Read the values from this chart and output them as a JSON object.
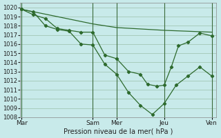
{
  "title": "Pression niveau de la mer( hPa )",
  "bg_color": "#c8eaea",
  "grid_color": "#9bbfaa",
  "line_color": "#2d6a2d",
  "ylim": [
    1008,
    1020.5
  ],
  "yticks": [
    1008,
    1009,
    1010,
    1011,
    1012,
    1013,
    1014,
    1015,
    1016,
    1017,
    1018,
    1019,
    1020
  ],
  "day_labels": [
    "Mar",
    "Sam",
    "Mer",
    "Jeu",
    "Ven"
  ],
  "day_x": [
    0,
    3,
    4,
    6,
    8
  ],
  "xlim": [
    -0.05,
    8.2
  ],
  "vlines": [
    0,
    3,
    4,
    6,
    8
  ],
  "line_flat": {
    "x": [
      0,
      3,
      4,
      6,
      8
    ],
    "y": [
      1019.8,
      1018.2,
      1017.8,
      1017.5,
      1017.3
    ],
    "markers": false
  },
  "line_mid": {
    "x": [
      0,
      0.5,
      1.0,
      1.5,
      2.0,
      2.5,
      3.0,
      3.5,
      4.0,
      4.5,
      5.0,
      5.3,
      5.7,
      6.0,
      6.3,
      6.6,
      7.0,
      7.5,
      8.0
    ],
    "y": [
      1019.8,
      1019.2,
      1018.8,
      1017.7,
      1017.5,
      1017.3,
      1017.3,
      1014.8,
      1014.4,
      1013.0,
      1012.7,
      1011.6,
      1011.4,
      1011.5,
      1013.5,
      1015.8,
      1016.2,
      1017.2,
      1016.9
    ],
    "markers": true
  },
  "line_deep": {
    "x": [
      0,
      0.5,
      1.0,
      1.5,
      2.0,
      2.5,
      3.0,
      3.5,
      4.0,
      4.5,
      5.0,
      5.5,
      6.0,
      6.5,
      7.0,
      7.5,
      8.0
    ],
    "y": [
      1019.8,
      1019.5,
      1018.0,
      1017.6,
      1017.4,
      1016.0,
      1015.9,
      1013.8,
      1012.7,
      1010.7,
      1009.3,
      1008.3,
      1009.5,
      1011.5,
      1012.5,
      1013.5,
      1012.5
    ],
    "markers": true
  }
}
